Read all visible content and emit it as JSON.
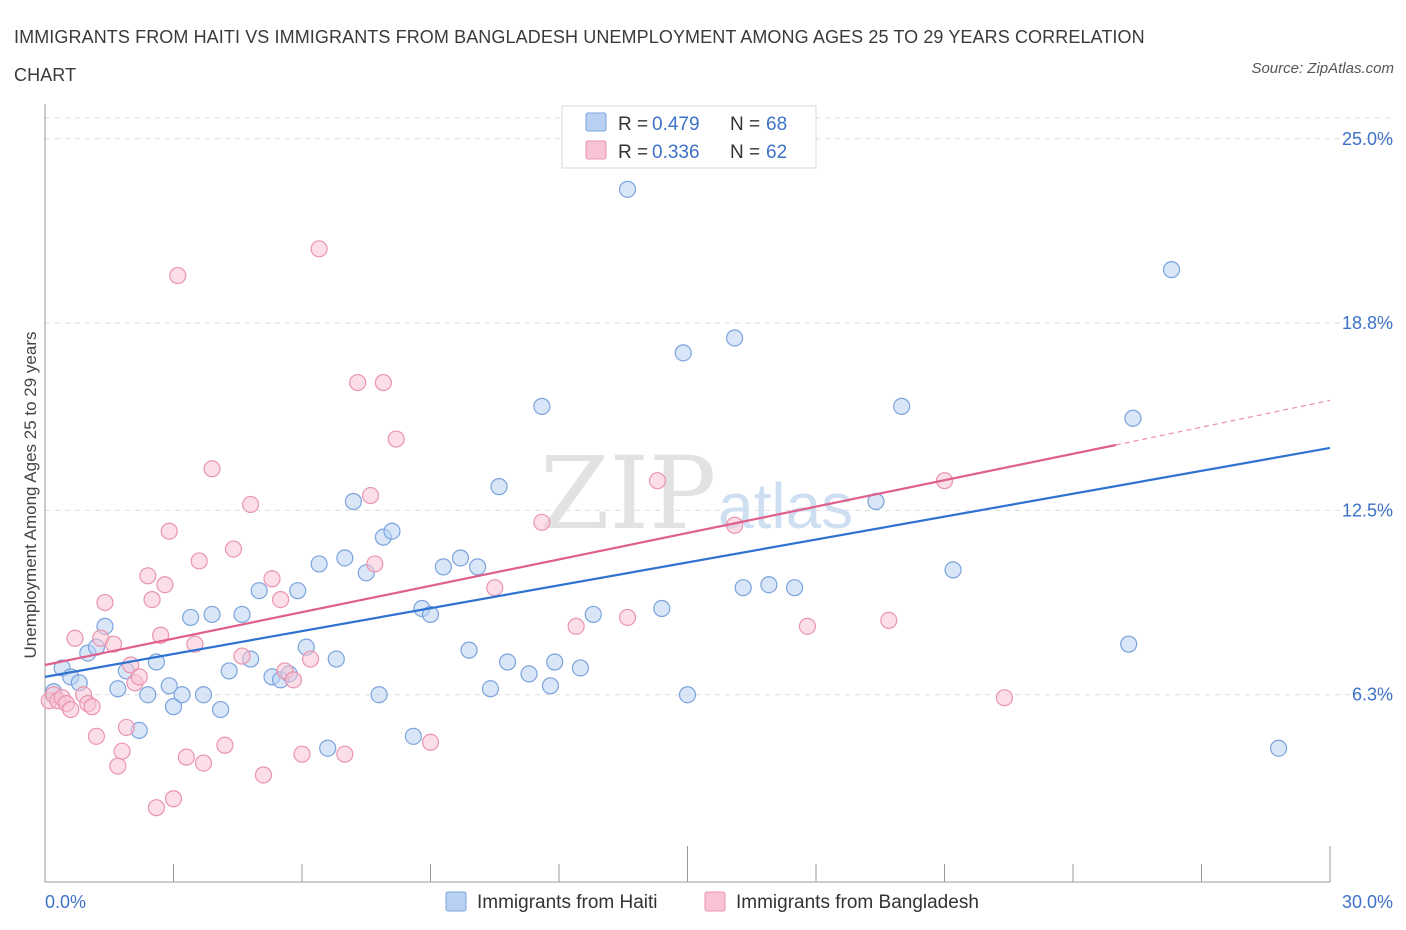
{
  "title": "IMMIGRANTS FROM HAITI VS IMMIGRANTS FROM BANGLADESH UNEMPLOYMENT AMONG AGES 25 TO 29 YEARS CORRELATION CHART",
  "source": "Source: ZipAtlas.com",
  "watermark": {
    "zip": "ZIP",
    "atlas": "atlas"
  },
  "legend": {
    "r_label": "R =",
    "n_label": "N =",
    "rows": [
      {
        "r": "0.479",
        "n": "68"
      },
      {
        "r": "0.336",
        "n": "62"
      }
    ]
  },
  "colors": {
    "haiti_fill": "#b8d1f2",
    "haiti_stroke": "#7ba3dc",
    "haiti_line": "#2f72d0",
    "bangladesh_fill": "#f8c3d4",
    "bangladesh_stroke": "#ea94b0",
    "bangladesh_line": "#e0608d",
    "tick_label": "#3d72c8",
    "grid": "#dcdcdc"
  },
  "chart_data": {
    "type": "scatter",
    "title": "IMMIGRANTS FROM HAITI VS IMMIGRANTS FROM BANGLADESH UNEMPLOYMENT AMONG AGES 25 TO 29 YEARS CORRELATION CHART",
    "xlabel": "",
    "ylabel": "Unemployment Among Ages 25 to 29 years",
    "xlim": [
      0,
      30
    ],
    "ylim": [
      0,
      25.7
    ],
    "x_tick_labels": [
      "0.0%",
      "30.0%"
    ],
    "y_ticks": [
      6.3,
      12.5,
      18.8,
      25.0
    ],
    "y_tick_labels": [
      "6.3%",
      "12.5%",
      "18.8%",
      "25.0%"
    ],
    "grid": true,
    "legend_position": "top-center",
    "series": [
      {
        "name": "Immigrants from Haiti",
        "r": 0.479,
        "n": 68,
        "trend": {
          "x": [
            0,
            30
          ],
          "y": [
            6.9,
            14.6
          ]
        },
        "points": [
          [
            0.2,
            6.4
          ],
          [
            0.4,
            7.2
          ],
          [
            0.6,
            6.9
          ],
          [
            0.8,
            6.7
          ],
          [
            1.0,
            7.7
          ],
          [
            1.2,
            7.9
          ],
          [
            1.4,
            8.6
          ],
          [
            1.7,
            6.5
          ],
          [
            1.9,
            7.1
          ],
          [
            2.2,
            5.1
          ],
          [
            2.4,
            6.3
          ],
          [
            2.6,
            7.4
          ],
          [
            2.9,
            6.6
          ],
          [
            3.0,
            5.9
          ],
          [
            3.2,
            6.3
          ],
          [
            3.4,
            8.9
          ],
          [
            3.7,
            6.3
          ],
          [
            3.9,
            9.0
          ],
          [
            4.1,
            5.8
          ],
          [
            4.3,
            7.1
          ],
          [
            4.6,
            9.0
          ],
          [
            4.8,
            7.5
          ],
          [
            5.0,
            9.8
          ],
          [
            5.3,
            6.9
          ],
          [
            5.5,
            6.8
          ],
          [
            5.7,
            7.0
          ],
          [
            5.9,
            9.8
          ],
          [
            6.1,
            7.9
          ],
          [
            6.4,
            10.7
          ],
          [
            6.6,
            4.5
          ],
          [
            6.8,
            7.5
          ],
          [
            7.0,
            10.9
          ],
          [
            7.2,
            12.8
          ],
          [
            7.5,
            10.4
          ],
          [
            7.8,
            6.3
          ],
          [
            7.9,
            11.6
          ],
          [
            8.1,
            11.8
          ],
          [
            8.6,
            4.9
          ],
          [
            8.8,
            9.2
          ],
          [
            9.0,
            9.0
          ],
          [
            9.3,
            10.6
          ],
          [
            9.7,
            10.9
          ],
          [
            9.9,
            7.8
          ],
          [
            10.1,
            10.6
          ],
          [
            10.4,
            6.5
          ],
          [
            10.6,
            13.3
          ],
          [
            10.8,
            7.4
          ],
          [
            11.3,
            7.0
          ],
          [
            11.6,
            16.0
          ],
          [
            11.8,
            6.6
          ],
          [
            11.9,
            7.4
          ],
          [
            12.5,
            7.2
          ],
          [
            12.8,
            9.0
          ],
          [
            13.6,
            23.3
          ],
          [
            14.4,
            9.2
          ],
          [
            14.9,
            17.8
          ],
          [
            15.0,
            6.3
          ],
          [
            16.1,
            18.3
          ],
          [
            16.3,
            9.9
          ],
          [
            16.9,
            10.0
          ],
          [
            17.5,
            9.9
          ],
          [
            19.4,
            12.8
          ],
          [
            20.0,
            16.0
          ],
          [
            21.2,
            10.5
          ],
          [
            25.3,
            8.0
          ],
          [
            25.4,
            15.6
          ],
          [
            26.3,
            20.6
          ],
          [
            28.8,
            4.5
          ]
        ]
      },
      {
        "name": "Immigrants from Bangladesh",
        "r": 0.336,
        "n": 62,
        "trend": {
          "x": [
            0,
            25
          ],
          "y": [
            7.3,
            14.7
          ]
        },
        "trend_dashed": {
          "x": [
            25,
            30
          ],
          "y": [
            14.7,
            16.2
          ]
        },
        "points": [
          [
            0.1,
            6.1
          ],
          [
            0.2,
            6.3
          ],
          [
            0.3,
            6.1
          ],
          [
            0.4,
            6.2
          ],
          [
            0.5,
            6.0
          ],
          [
            0.6,
            5.8
          ],
          [
            0.7,
            8.2
          ],
          [
            0.9,
            6.3
          ],
          [
            1.0,
            6.0
          ],
          [
            1.1,
            5.9
          ],
          [
            1.2,
            4.9
          ],
          [
            1.3,
            8.2
          ],
          [
            1.4,
            9.4
          ],
          [
            1.6,
            8.0
          ],
          [
            1.7,
            3.9
          ],
          [
            1.8,
            4.4
          ],
          [
            1.9,
            5.2
          ],
          [
            2.0,
            7.3
          ],
          [
            2.1,
            6.7
          ],
          [
            2.2,
            6.9
          ],
          [
            2.4,
            10.3
          ],
          [
            2.5,
            9.5
          ],
          [
            2.6,
            2.5
          ],
          [
            2.7,
            8.3
          ],
          [
            2.8,
            10.0
          ],
          [
            2.9,
            11.8
          ],
          [
            3.0,
            2.8
          ],
          [
            3.1,
            20.4
          ],
          [
            3.3,
            4.2
          ],
          [
            3.5,
            8.0
          ],
          [
            3.6,
            10.8
          ],
          [
            3.7,
            4.0
          ],
          [
            3.9,
            13.9
          ],
          [
            4.2,
            4.6
          ],
          [
            4.4,
            11.2
          ],
          [
            4.6,
            7.6
          ],
          [
            4.8,
            12.7
          ],
          [
            5.1,
            3.6
          ],
          [
            5.3,
            10.2
          ],
          [
            5.5,
            9.5
          ],
          [
            5.6,
            7.1
          ],
          [
            5.8,
            6.8
          ],
          [
            6.0,
            4.3
          ],
          [
            6.2,
            7.5
          ],
          [
            6.4,
            21.3
          ],
          [
            7.0,
            4.3
          ],
          [
            7.3,
            16.8
          ],
          [
            7.6,
            13.0
          ],
          [
            7.7,
            10.7
          ],
          [
            7.9,
            16.8
          ],
          [
            8.2,
            14.9
          ],
          [
            9.0,
            4.7
          ],
          [
            10.5,
            9.9
          ],
          [
            11.6,
            12.1
          ],
          [
            12.4,
            8.6
          ],
          [
            13.6,
            8.9
          ],
          [
            14.3,
            13.5
          ],
          [
            16.1,
            12.0
          ],
          [
            17.8,
            8.6
          ],
          [
            19.7,
            8.8
          ],
          [
            21.0,
            13.5
          ],
          [
            22.4,
            6.2
          ]
        ]
      }
    ]
  },
  "bottom_legend": [
    "Immigrants from Haiti",
    "Immigrants from Bangladesh"
  ]
}
